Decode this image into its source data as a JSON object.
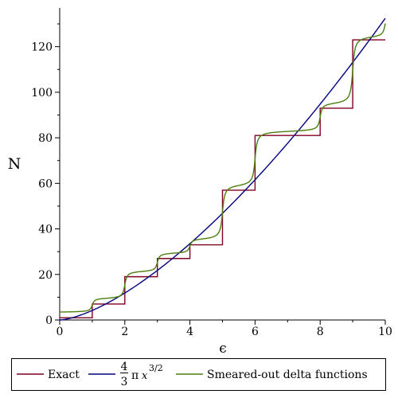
{
  "chart_data": {
    "type": "line",
    "xlabel": "ϵ",
    "ylabel": "N",
    "xlim": [
      0,
      10
    ],
    "ylim": [
      0,
      137
    ],
    "x_ticks": [
      0,
      2,
      4,
      6,
      8,
      10
    ],
    "y_ticks": [
      0,
      20,
      40,
      60,
      80,
      100,
      120
    ],
    "grid": false,
    "legend_position": "bottom",
    "series": [
      {
        "name": "Exact",
        "color": "#800020",
        "shape": "step",
        "x": [
          0,
          1,
          2,
          3,
          4,
          5,
          6,
          8,
          9,
          10
        ],
        "y": [
          1,
          7,
          19,
          27,
          33,
          57,
          81,
          93,
          123,
          123
        ]
      },
      {
        "name": "4/3 π x^(3/2)",
        "legend_fraction_num": "4",
        "legend_fraction_den": "3",
        "legend_pi": "π",
        "legend_var": "x",
        "legend_exp": "3/2",
        "color": "#000080",
        "shape": "function",
        "x": [
          0,
          1,
          2,
          3,
          4,
          5,
          6,
          7,
          8,
          9,
          10
        ],
        "y": [
          0,
          4.19,
          11.85,
          21.77,
          33.51,
          46.83,
          61.56,
          77.58,
          94.78,
          113.1,
          132.45
        ]
      },
      {
        "name": "Smeared-out delta functions",
        "color": "#4B7F0E",
        "shape": "smoothed-step",
        "x": [
          0,
          1,
          2,
          3,
          4,
          5,
          6,
          8,
          9,
          10
        ],
        "y": [
          3,
          9,
          21,
          29,
          35,
          59,
          83,
          95,
          125,
          137
        ]
      }
    ]
  }
}
